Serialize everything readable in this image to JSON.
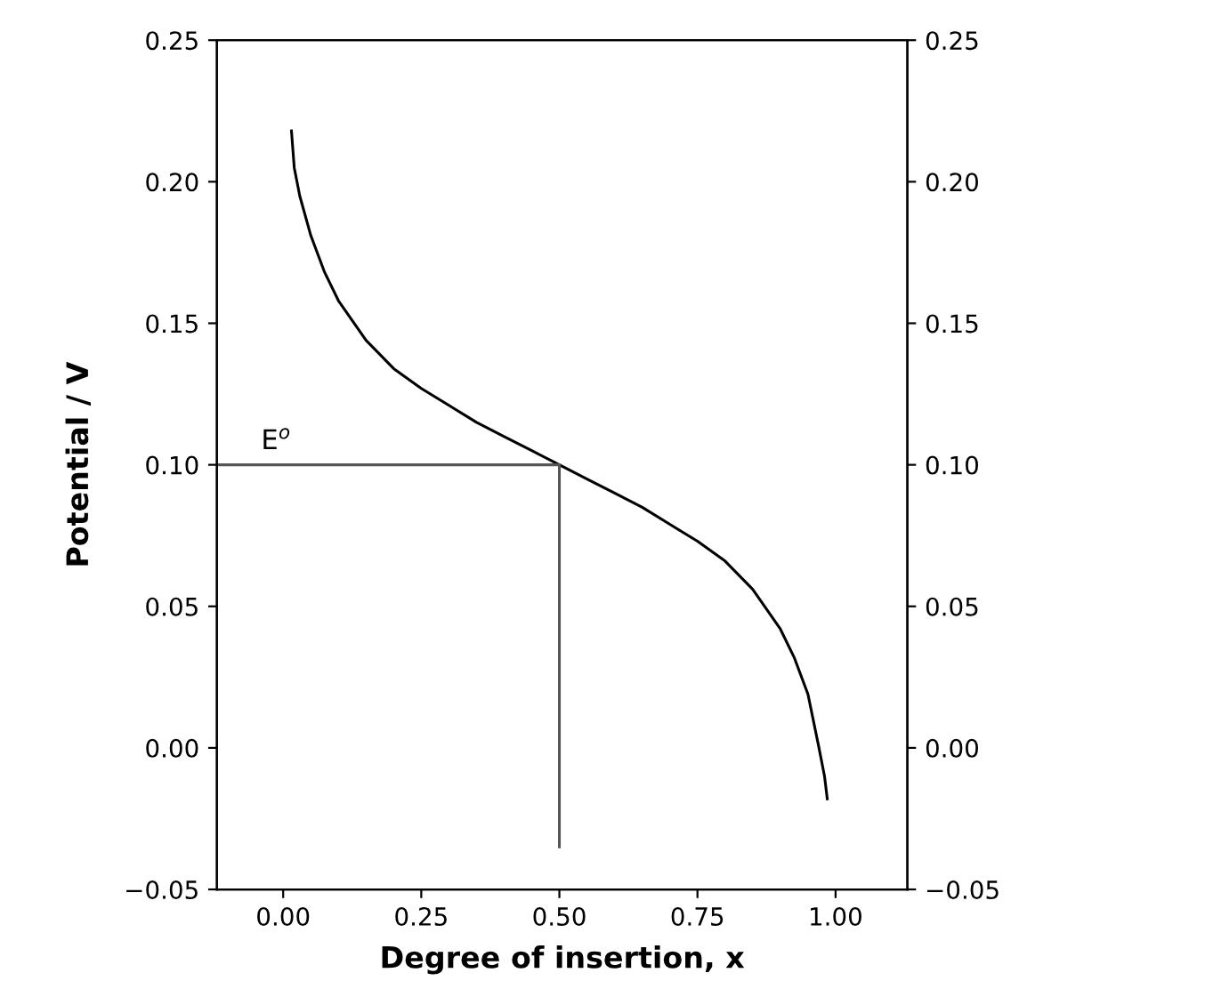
{
  "chart_data": {
    "type": "line",
    "xlabel": "Degree of insertion, x",
    "ylabel": "Potential / V",
    "series": [
      {
        "x": [
          0.015,
          0.02,
          0.03,
          0.05,
          0.075,
          0.1,
          0.15,
          0.2,
          0.25,
          0.3,
          0.35,
          0.4,
          0.45,
          0.5,
          0.55,
          0.6,
          0.65,
          0.7,
          0.75,
          0.8,
          0.85,
          0.9,
          0.925,
          0.95,
          0.97,
          0.98,
          0.985
        ],
        "values": [
          0.218,
          0.205,
          0.195,
          0.181,
          0.168,
          0.158,
          0.144,
          0.134,
          0.127,
          0.121,
          0.115,
          0.11,
          0.105,
          0.1,
          0.095,
          0.09,
          0.085,
          0.079,
          0.073,
          0.066,
          0.056,
          0.042,
          0.032,
          0.019,
          0.0,
          -0.01,
          -0.018
        ],
        "color": "#000000"
      },
      {
        "x": [
          -0.12,
          0.5
        ],
        "values": [
          0.1,
          0.1
        ],
        "color": "#555555"
      },
      {
        "x": [
          0.5,
          0.5
        ],
        "values": [
          0.1,
          -0.035
        ],
        "color": "#555555"
      }
    ],
    "annotations": [
      {
        "text": "E$^{o}$",
        "x": -0.04,
        "y": 0.1
      }
    ],
    "xlim": [
      -0.12,
      1.13
    ],
    "ylim": [
      -0.05,
      0.25
    ],
    "y2lim": [
      -0.05,
      0.25
    ],
    "xticks": [
      {
        "value": 0,
        "label": "0.00"
      },
      {
        "value": 0.25,
        "label": "0.25"
      },
      {
        "value": 0.5,
        "label": "0.50"
      },
      {
        "value": 0.75,
        "label": "0.75"
      },
      {
        "value": 1,
        "label": "1.00"
      }
    ],
    "yticks": [
      {
        "value": -0.05,
        "label": "−0.05"
      },
      {
        "value": 0,
        "label": "0.00"
      },
      {
        "value": 0.05,
        "label": "0.05"
      },
      {
        "value": 0.1,
        "label": "0.10"
      },
      {
        "value": 0.15,
        "label": "0.15"
      },
      {
        "value": 0.2,
        "label": "0.20"
      },
      {
        "value": 0.25,
        "label": "0.25"
      }
    ],
    "y2ticks": [
      {
        "value": -0.05,
        "label": "−0.05"
      },
      {
        "value": 0,
        "label": "0.00"
      },
      {
        "value": 0.05,
        "label": "0.05"
      },
      {
        "value": 0.1,
        "label": "0.10"
      },
      {
        "value": 0.15,
        "label": "0.15"
      },
      {
        "value": 0.2,
        "label": "0.20"
      },
      {
        "value": 0.25,
        "label": "0.25"
      }
    ],
    "grid": false,
    "legend": false,
    "marker": "none",
    "line_style": "solid"
  }
}
